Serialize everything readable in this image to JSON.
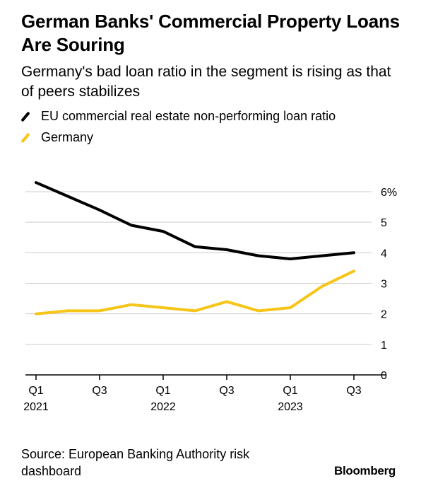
{
  "title": "German Banks' Commercial Property Loans Are Souring",
  "subtitle": "Germany's bad loan ratio in the segment is rising as that of peers stabilizes",
  "source": "Source: European Banking Authority risk dashboard",
  "brand": "Bloomberg",
  "colors": {
    "eu": "#000000",
    "germany": "#f5c518",
    "grid": "#cccccc",
    "axis": "#000000"
  },
  "chart_data": {
    "type": "line",
    "x": [
      "2021-Q1",
      "2021-Q2",
      "2021-Q3",
      "2021-Q4",
      "2022-Q1",
      "2022-Q2",
      "2022-Q3",
      "2022-Q4",
      "2023-Q1",
      "2023-Q2",
      "2023-Q3"
    ],
    "x_tick_labels": [
      {
        "index": 0,
        "line1": "Q1",
        "line2": "2021"
      },
      {
        "index": 2,
        "line1": "Q3",
        "line2": ""
      },
      {
        "index": 4,
        "line1": "Q1",
        "line2": "2022"
      },
      {
        "index": 6,
        "line1": "Q3",
        "line2": ""
      },
      {
        "index": 8,
        "line1": "Q1",
        "line2": "2023"
      },
      {
        "index": 10,
        "line1": "Q3",
        "line2": ""
      }
    ],
    "y_ticks": [
      0,
      1,
      2,
      3,
      4,
      5,
      6
    ],
    "y_tick_labels": [
      "0",
      "1",
      "2",
      "3",
      "4",
      "5",
      "6%"
    ],
    "ylim": [
      0,
      6
    ],
    "grid": true,
    "legend_position": "top-left",
    "series": [
      {
        "name": "EU commercial real estate non-performing loan ratio",
        "color_key": "eu",
        "values": [
          6.3,
          5.85,
          5.4,
          4.9,
          4.7,
          4.2,
          4.1,
          3.9,
          3.8,
          3.9,
          4.0
        ]
      },
      {
        "name": "Germany",
        "color_key": "germany",
        "values": [
          2.0,
          2.1,
          2.1,
          2.3,
          2.2,
          2.1,
          2.4,
          2.1,
          2.2,
          2.9,
          3.4
        ]
      }
    ]
  }
}
